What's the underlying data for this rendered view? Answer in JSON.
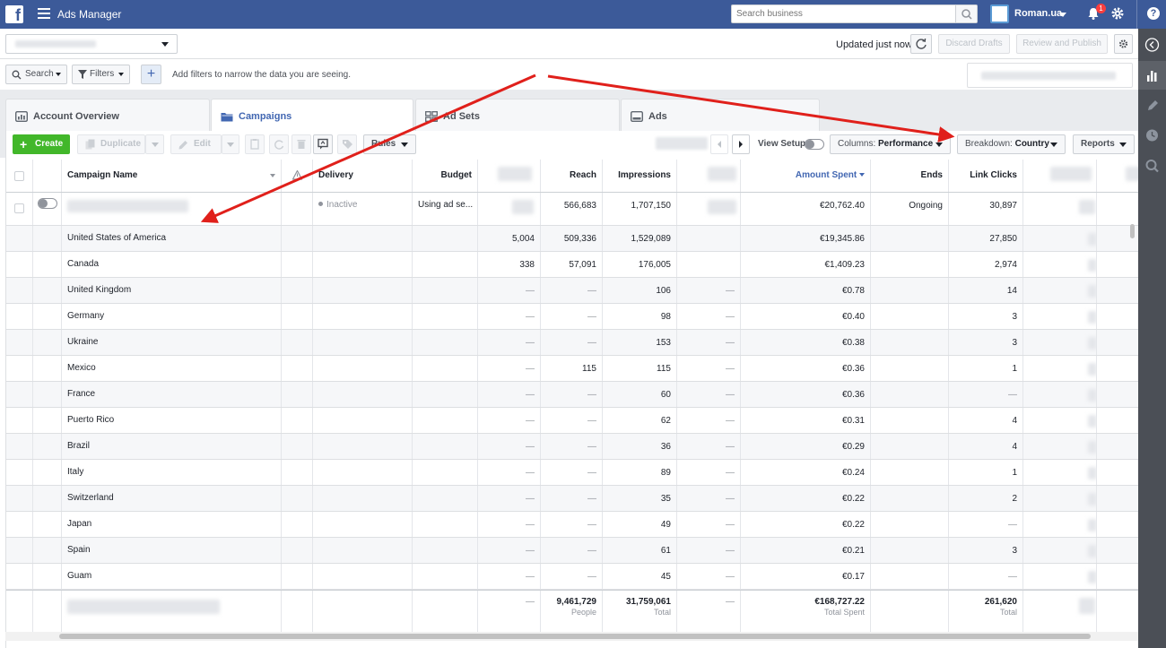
{
  "topbar": {
    "app_title": "Ads Manager",
    "search_placeholder": "Search business",
    "account_name": "Roman.ua",
    "notification_count": "1",
    "help_label": "?"
  },
  "header": {
    "updated_text": "Updated just now",
    "discard_label": "Discard Drafts",
    "review_label": "Review and Publish"
  },
  "filters": {
    "search_label": "Search",
    "filters_label": "Filters",
    "add_label": "+",
    "hint": "Add filters to narrow the data you are seeing."
  },
  "tabs": [
    {
      "label": "Account Overview",
      "icon": "dashboard-icon"
    },
    {
      "label": "Campaigns",
      "icon": "folder-icon"
    },
    {
      "label": "Ad Sets",
      "icon": "grid-icon"
    },
    {
      "label": "Ads",
      "icon": "ad-icon"
    }
  ],
  "toolbar": {
    "create_label": "Create",
    "duplicate_label": "Duplicate",
    "edit_label": "Edit",
    "rules_label": "Rules",
    "view_setup_label": "View Setup",
    "columns_prefix": "Columns: ",
    "columns_value": "Performance",
    "breakdown_prefix": "Breakdown: ",
    "breakdown_value": "Country",
    "reports_label": "Reports"
  },
  "table": {
    "headers": {
      "name": "Campaign Name",
      "delivery": "Delivery",
      "budget": "Budget",
      "reach": "Reach",
      "impressions": "Impressions",
      "amount_spent": "Amount Spent",
      "ends": "Ends",
      "link_clicks": "Link Clicks"
    },
    "campaign": {
      "delivery": "Inactive",
      "budget": "Using ad se...",
      "reach": "566,683",
      "impressions": "1,707,150",
      "amount_spent": "€20,762.40",
      "ends": "Ongoing",
      "link_clicks": "30,897"
    },
    "rows": [
      {
        "country": "United States of America",
        "results": "5,004",
        "reach": "509,336",
        "impressions": "1,529,089",
        "cpr": "",
        "spent": "€19,345.86",
        "clicks": "27,850"
      },
      {
        "country": "Canada",
        "results": "338",
        "reach": "57,091",
        "impressions": "176,005",
        "cpr": "",
        "spent": "€1,409.23",
        "clicks": "2,974"
      },
      {
        "country": "United Kingdom",
        "results": "—",
        "reach": "—",
        "impressions": "106",
        "cpr": "—",
        "spent": "€0.78",
        "clicks": "14"
      },
      {
        "country": "Germany",
        "results": "—",
        "reach": "—",
        "impressions": "98",
        "cpr": "—",
        "spent": "€0.40",
        "clicks": "3"
      },
      {
        "country": "Ukraine",
        "results": "—",
        "reach": "—",
        "impressions": "153",
        "cpr": "—",
        "spent": "€0.38",
        "clicks": "3"
      },
      {
        "country": "Mexico",
        "results": "—",
        "reach": "115",
        "impressions": "115",
        "cpr": "—",
        "spent": "€0.36",
        "clicks": "1"
      },
      {
        "country": "France",
        "results": "—",
        "reach": "—",
        "impressions": "60",
        "cpr": "—",
        "spent": "€0.36",
        "clicks": "—"
      },
      {
        "country": "Puerto Rico",
        "results": "—",
        "reach": "—",
        "impressions": "62",
        "cpr": "—",
        "spent": "€0.31",
        "clicks": "4"
      },
      {
        "country": "Brazil",
        "results": "—",
        "reach": "—",
        "impressions": "36",
        "cpr": "—",
        "spent": "€0.29",
        "clicks": "4"
      },
      {
        "country": "Italy",
        "results": "—",
        "reach": "—",
        "impressions": "89",
        "cpr": "—",
        "spent": "€0.24",
        "clicks": "1"
      },
      {
        "country": "Switzerland",
        "results": "—",
        "reach": "—",
        "impressions": "35",
        "cpr": "—",
        "spent": "€0.22",
        "clicks": "2"
      },
      {
        "country": "Japan",
        "results": "—",
        "reach": "—",
        "impressions": "49",
        "cpr": "—",
        "spent": "€0.22",
        "clicks": "—"
      },
      {
        "country": "Spain",
        "results": "—",
        "reach": "—",
        "impressions": "61",
        "cpr": "—",
        "spent": "€0.21",
        "clicks": "3"
      },
      {
        "country": "Guam",
        "results": "—",
        "reach": "—",
        "impressions": "45",
        "cpr": "—",
        "spent": "€0.17",
        "clicks": "—"
      }
    ],
    "totals": {
      "results": "—",
      "reach": "9,461,729",
      "reach_sub": "People",
      "impressions": "31,759,061",
      "impressions_sub": "Total",
      "cpr": "—",
      "spent": "€168,727.22",
      "spent_sub": "Total Spent",
      "clicks": "261,620",
      "clicks_sub": "Total"
    }
  },
  "annotation_color": "#e0201b"
}
